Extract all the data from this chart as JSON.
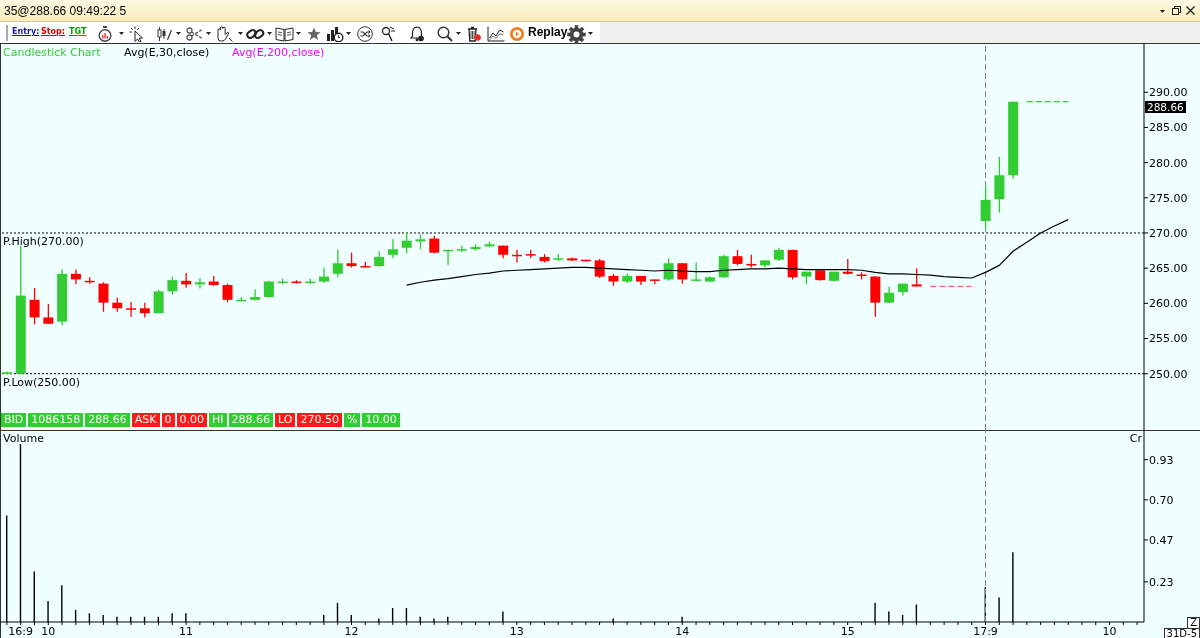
{
  "chart_data": [
    {
      "type": "candlestick",
      "title": "35@288.66 09:49:22 5",
      "legend": "top left",
      "tick_labels": "y",
      "categories": [
        null,
        "16:9",
        null,
        "10",
        null,
        null,
        null,
        null,
        null,
        null,
        null,
        null,
        null,
        "11",
        null,
        null,
        null,
        null,
        null,
        null,
        null,
        null,
        null,
        null,
        null,
        "12",
        null,
        null,
        null,
        null,
        null,
        null,
        null,
        null,
        null,
        null,
        null,
        "13",
        null,
        null,
        null,
        null,
        null,
        null,
        null,
        null,
        null,
        null,
        null,
        "14",
        null,
        null,
        null,
        null,
        null,
        null,
        null,
        null,
        null,
        null,
        null,
        "15",
        null,
        null,
        null,
        null,
        null,
        null,
        null,
        null,
        null,
        "17:9",
        null,
        null,
        null,
        null,
        null,
        null,
        null,
        null,
        "10",
        null,
        null
      ],
      "ylim": [
        242,
        297
      ],
      "yticks": [
        {
          "value": 250,
          "label": "250.00"
        },
        {
          "value": 255,
          "label": "255.00"
        },
        {
          "value": 260,
          "label": "260.00"
        },
        {
          "value": 265,
          "label": "265.00"
        },
        {
          "value": 270,
          "label": "270.00"
        },
        {
          "value": 275,
          "label": "275.00"
        },
        {
          "value": 280,
          "label": "280.00"
        },
        {
          "value": 285,
          "label": "285.00"
        },
        {
          "value": 290,
          "label": "290.00"
        }
      ],
      "ref_lines": [
        {
          "axis": "y",
          "value": 270,
          "label": "P.High(270.00)",
          "color": "#000000",
          "line_style": "dotted"
        },
        {
          "axis": "y",
          "value": 250,
          "label": "P.Low(250.00)",
          "color": "#000000",
          "line_style": "dotted"
        },
        {
          "axis": "x",
          "value": "17:9",
          "color": "#808080",
          "line_style": "dashed"
        }
      ],
      "annotations": [
        "Entry:",
        "Stop:",
        "TGT",
        "Replay",
        "BID",
        "1086158",
        "288.66",
        "ASK",
        "0",
        "0.00",
        "HI",
        "288.66",
        "LO",
        "270.50",
        "%",
        "10.00",
        "288.66",
        "Avg(E,200,close)"
      ],
      "series": [
        {
          "type": "candlestick",
          "name": "Candlestick Chart",
          "color": "#33cc33",
          "colors": [
            "#33cc33",
            "#33cc33",
            "#ff0000",
            "#ff0000",
            "#33cc33",
            "#ff0000",
            "#ff0000",
            "#ff0000",
            "#ff0000",
            "#ff0000",
            "#ff0000",
            "#33cc33",
            "#33cc33",
            "#ff0000",
            "#33cc33",
            "#ff0000",
            "#ff0000",
            "#33cc33",
            "#33cc33",
            "#33cc33",
            "#33cc33",
            "#ff0000",
            "#33cc33",
            "#33cc33",
            "#33cc33",
            "#ff0000",
            "#ff0000",
            "#33cc33",
            "#33cc33",
            "#33cc33",
            "#33cc33",
            "#ff0000",
            "#33cc33",
            "#33cc33",
            "#33cc33",
            "#33cc33",
            "#ff0000",
            "#ff0000",
            "#ff0000",
            "#ff0000",
            "#33cc33",
            "#ff0000",
            "#ff0000",
            "#ff0000",
            "#ff0000",
            "#33cc33",
            "#ff0000",
            "#ff0000",
            "#33cc33",
            "#ff0000",
            "#33cc33",
            "#33cc33",
            "#33cc33",
            "#ff0000",
            "#ff0000",
            "#33cc33",
            "#33cc33",
            "#ff0000",
            "#33cc33",
            "#ff0000",
            "#33cc33",
            "#ff0000",
            "#ff0000",
            "#ff0000",
            "#33cc33",
            "#33cc33",
            "#ff0000",
            null,
            null,
            null,
            null,
            "#33cc33",
            "#33cc33",
            "#33cc33",
            null,
            null,
            null,
            null,
            null,
            null,
            null,
            null,
            null
          ],
          "ohlc": [
            [
              250.0,
              250.3,
              250.0,
              250.2
            ],
            [
              250.0,
              268.2,
              250.0,
              261.1
            ],
            [
              260.5,
              262.2,
              257.0,
              258.0
            ],
            [
              258.0,
              259.9,
              257.1,
              257.1
            ],
            [
              257.4,
              264.8,
              256.9,
              264.2
            ],
            [
              264.2,
              264.8,
              262.7,
              263.4
            ],
            [
              263.2,
              263.7,
              262.8,
              263.0
            ],
            [
              262.8,
              263.0,
              258.8,
              260.1
            ],
            [
              260.1,
              260.8,
              258.8,
              259.3
            ],
            [
              259.3,
              260.2,
              258.1,
              259.1
            ],
            [
              259.3,
              260.1,
              258.0,
              258.6
            ],
            [
              258.6,
              261.9,
              258.6,
              261.7
            ],
            [
              261.7,
              263.8,
              261.2,
              263.3
            ],
            [
              263.2,
              264.3,
              262.2,
              262.7
            ],
            [
              262.7,
              263.6,
              262.1,
              263.0
            ],
            [
              263.1,
              263.9,
              262.5,
              262.6
            ],
            [
              262.6,
              262.8,
              260.2,
              260.5
            ],
            [
              260.4,
              260.9,
              260.3,
              260.5
            ],
            [
              260.5,
              262.0,
              260.4,
              260.9
            ],
            [
              260.9,
              263.2,
              260.8,
              263.1
            ],
            [
              262.9,
              263.5,
              262.7,
              263.1
            ],
            [
              263.1,
              263.3,
              262.8,
              262.9
            ],
            [
              262.9,
              263.5,
              262.7,
              263.1
            ],
            [
              263.1,
              265.1,
              262.9,
              263.8
            ],
            [
              264.2,
              267.6,
              263.7,
              265.7
            ],
            [
              265.7,
              267.2,
              265.1,
              265.3
            ],
            [
              265.3,
              265.9,
              265.1,
              265.2
            ],
            [
              265.3,
              267.4,
              265.2,
              266.6
            ],
            [
              266.9,
              269.1,
              266.4,
              267.7
            ],
            [
              267.9,
              270.0,
              267.1,
              268.9
            ],
            [
              268.8,
              269.8,
              267.7,
              269.1
            ],
            [
              269.2,
              269.6,
              267.1,
              267.2
            ],
            [
              267.4,
              267.6,
              265.4,
              267.6
            ],
            [
              267.6,
              268.2,
              267.3,
              267.7
            ],
            [
              267.7,
              268.4,
              267.5,
              268.0
            ],
            [
              268.1,
              268.8,
              268.0,
              268.4
            ],
            [
              268.2,
              268.2,
              266.4,
              266.9
            ],
            [
              266.9,
              267.6,
              265.8,
              266.7
            ],
            [
              267.0,
              267.6,
              266.4,
              266.8
            ],
            [
              266.6,
              267.0,
              265.8,
              266.0
            ],
            [
              266.2,
              267.0,
              266.0,
              266.4
            ],
            [
              266.4,
              266.5,
              266.0,
              266.1
            ],
            [
              266.2,
              266.2,
              265.9,
              266.0
            ],
            [
              266.1,
              266.3,
              263.6,
              263.8
            ],
            [
              263.9,
              264.2,
              262.5,
              263.1
            ],
            [
              263.1,
              264.2,
              262.9,
              263.9
            ],
            [
              263.9,
              263.9,
              262.6,
              263.1
            ],
            [
              263.4,
              263.4,
              262.7,
              263.3
            ],
            [
              263.4,
              266.4,
              263.2,
              265.7
            ],
            [
              265.7,
              265.7,
              262.8,
              263.4
            ],
            [
              263.2,
              265.8,
              263.2,
              263.4
            ],
            [
              263.1,
              263.8,
              263.0,
              263.7
            ],
            [
              263.7,
              266.9,
              263.6,
              266.7
            ],
            [
              266.7,
              267.6,
              265.4,
              265.6
            ],
            [
              265.6,
              266.9,
              265.1,
              265.4
            ],
            [
              265.4,
              266.1,
              265.1,
              266.1
            ],
            [
              266.2,
              267.9,
              266.0,
              267.6
            ],
            [
              267.6,
              267.6,
              263.4,
              263.7
            ],
            [
              263.8,
              264.5,
              262.7,
              264.5
            ],
            [
              264.7,
              264.8,
              263.2,
              263.3
            ],
            [
              263.2,
              264.5,
              263.1,
              264.5
            ],
            [
              264.5,
              266.3,
              264.1,
              264.2
            ],
            [
              264.1,
              264.4,
              263.4,
              263.9
            ],
            [
              263.8,
              263.9,
              258.1,
              260.1
            ],
            [
              260.1,
              262.4,
              260.0,
              261.5
            ],
            [
              261.6,
              262.8,
              261.1,
              262.8
            ],
            [
              262.7,
              265.0,
              262.4,
              262.4
            ],
            null,
            null,
            null,
            null,
            [
              271.7,
              276.7,
              270.5,
              274.7
            ],
            [
              274.8,
              280.8,
              272.9,
              278.2
            ],
            [
              278.2,
              288.66,
              277.7,
              288.66
            ],
            null,
            null,
            null,
            null,
            null,
            null,
            null,
            null,
            null
          ]
        },
        {
          "type": "line",
          "name": "Avg(E,30,close)",
          "color": "#000000",
          "values": [
            null,
            null,
            null,
            null,
            null,
            null,
            null,
            null,
            null,
            null,
            null,
            null,
            null,
            null,
            null,
            null,
            null,
            null,
            null,
            null,
            null,
            null,
            null,
            null,
            null,
            null,
            null,
            null,
            null,
            262.6,
            263.0,
            263.3,
            263.5,
            263.8,
            264.1,
            264.3,
            264.6,
            264.7,
            264.8,
            264.9,
            265.0,
            265.1,
            265.1,
            265.0,
            264.9,
            264.8,
            264.7,
            264.6,
            264.7,
            264.6,
            264.5,
            264.5,
            264.7,
            264.8,
            264.9,
            264.9,
            265.0,
            264.9,
            264.8,
            264.8,
            264.8,
            264.8,
            264.7,
            264.4,
            264.2,
            264.2,
            264.1,
            264.0,
            263.8,
            263.7,
            263.6,
            264.4,
            265.4,
            267.4,
            268.7,
            270.0,
            271.0,
            271.9,
            null,
            null,
            null,
            null,
            null
          ]
        },
        {
          "type": "line",
          "color": "#ff6060",
          "line_style": "dashed",
          "values": [
            null,
            null,
            null,
            null,
            null,
            null,
            null,
            null,
            null,
            null,
            null,
            null,
            null,
            null,
            null,
            null,
            null,
            null,
            null,
            null,
            null,
            null,
            null,
            null,
            null,
            null,
            null,
            null,
            null,
            null,
            null,
            null,
            null,
            null,
            null,
            null,
            null,
            null,
            null,
            null,
            null,
            null,
            null,
            null,
            null,
            null,
            null,
            null,
            null,
            null,
            null,
            null,
            null,
            null,
            null,
            null,
            null,
            null,
            null,
            null,
            null,
            null,
            null,
            null,
            null,
            null,
            null,
            262.4,
            262.4,
            262.4,
            262.4,
            null,
            null,
            null,
            null,
            null,
            null,
            null,
            null,
            null,
            null,
            null,
            null
          ]
        },
        {
          "type": "line",
          "color": "#33cc33",
          "line_style": "dashed",
          "values": [
            null,
            null,
            null,
            null,
            null,
            null,
            null,
            null,
            null,
            null,
            null,
            null,
            null,
            null,
            null,
            null,
            null,
            null,
            null,
            null,
            null,
            null,
            null,
            null,
            null,
            null,
            null,
            null,
            null,
            null,
            null,
            null,
            null,
            null,
            null,
            null,
            null,
            null,
            null,
            null,
            null,
            null,
            null,
            null,
            null,
            null,
            null,
            null,
            null,
            null,
            null,
            null,
            null,
            null,
            null,
            null,
            null,
            null,
            null,
            null,
            null,
            null,
            null,
            null,
            null,
            null,
            null,
            null,
            null,
            null,
            null,
            null,
            null,
            null,
            288.66,
            288.66,
            288.66,
            288.66,
            null,
            null,
            null,
            null,
            null
          ]
        }
      ]
    },
    {
      "type": "bar",
      "title": "Volume",
      "ylabel": "Cr",
      "categories": [
        null,
        "16:9",
        null,
        "10",
        null,
        null,
        null,
        null,
        null,
        null,
        null,
        null,
        null,
        "11",
        null,
        null,
        null,
        null,
        null,
        null,
        null,
        null,
        null,
        null,
        null,
        "12",
        null,
        null,
        null,
        null,
        null,
        null,
        null,
        null,
        null,
        null,
        null,
        "13",
        null,
        null,
        null,
        null,
        null,
        null,
        null,
        null,
        null,
        null,
        null,
        "14",
        null,
        null,
        null,
        null,
        null,
        null,
        null,
        null,
        null,
        null,
        null,
        "15",
        null,
        null,
        null,
        null,
        null,
        null,
        null,
        null,
        null,
        "17:9",
        null,
        null,
        null,
        null,
        null,
        null,
        null,
        null,
        "10",
        null,
        null
      ],
      "values": [
        0.61,
        1.02,
        0.29,
        0.12,
        0.21,
        0.07,
        0.05,
        0.04,
        0.03,
        0.03,
        0.03,
        0.03,
        0.05,
        0.05,
        null,
        null,
        null,
        null,
        null,
        null,
        null,
        null,
        null,
        0.04,
        0.11,
        0.04,
        null,
        0.02,
        0.08,
        0.08,
        0.03,
        0.02,
        0.03,
        null,
        null,
        null,
        0.06,
        null,
        null,
        null,
        null,
        null,
        null,
        null,
        0.02,
        null,
        null,
        null,
        null,
        0.03,
        null,
        null,
        null,
        null,
        null,
        null,
        null,
        null,
        null,
        null,
        null,
        null,
        null,
        0.11,
        0.06,
        0.04,
        0.1,
        null,
        null,
        null,
        null,
        0.2,
        0.14,
        0.4,
        null,
        null,
        null,
        null,
        null,
        null,
        null,
        null,
        null
      ],
      "color": "#000000",
      "ylim": [
        0,
        1.1
      ],
      "yticks": [
        0.93,
        {
          "value": 0.7,
          "label": "0.70"
        },
        0.47,
        0.23
      ],
      "ref_lines": [
        {
          "axis": "x",
          "value": "17:9",
          "color": "#808080",
          "line_style": "dashed"
        }
      ],
      "annotations": [
        "Z",
        "31D-5"
      ]
    }
  ]
}
